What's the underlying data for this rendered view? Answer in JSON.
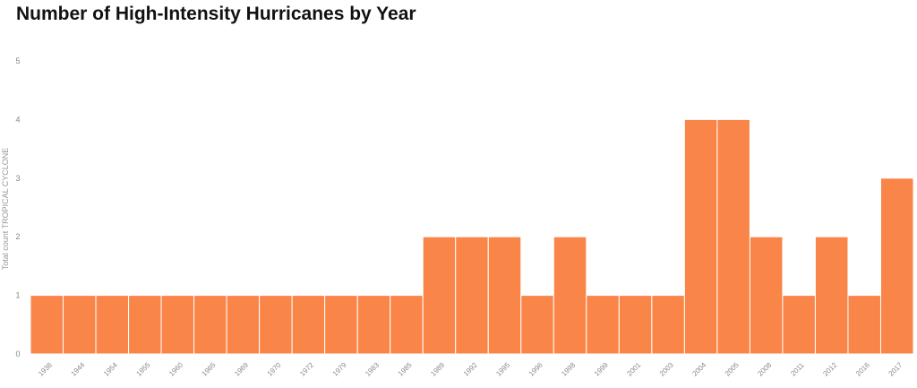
{
  "chart_data": {
    "type": "bar",
    "title": "Number of High-Intensity Hurricanes by Year",
    "xlabel": "",
    "ylabel": "Total count TROPICAL CYCLONE",
    "categories": [
      "1938",
      "1944",
      "1954",
      "1955",
      "1960",
      "1965",
      "1969",
      "1970",
      "1972",
      "1979",
      "1983",
      "1985",
      "1989",
      "1992",
      "1995",
      "1996",
      "1998",
      "1999",
      "2001",
      "2003",
      "2004",
      "2005",
      "2008",
      "2011",
      "2012",
      "2016",
      "2017"
    ],
    "values": [
      1,
      1,
      1,
      1,
      1,
      1,
      1,
      1,
      1,
      1,
      1,
      1,
      2,
      2,
      2,
      1,
      2,
      1,
      1,
      1,
      4,
      4,
      2,
      1,
      2,
      1,
      3
    ],
    "ylim": [
      0,
      5
    ],
    "yticks": [
      0,
      1,
      2,
      3,
      4,
      5
    ],
    "grid": false,
    "legend": "none",
    "bar_color": "#fa8548",
    "bar_edge_color": "#ffffff"
  }
}
